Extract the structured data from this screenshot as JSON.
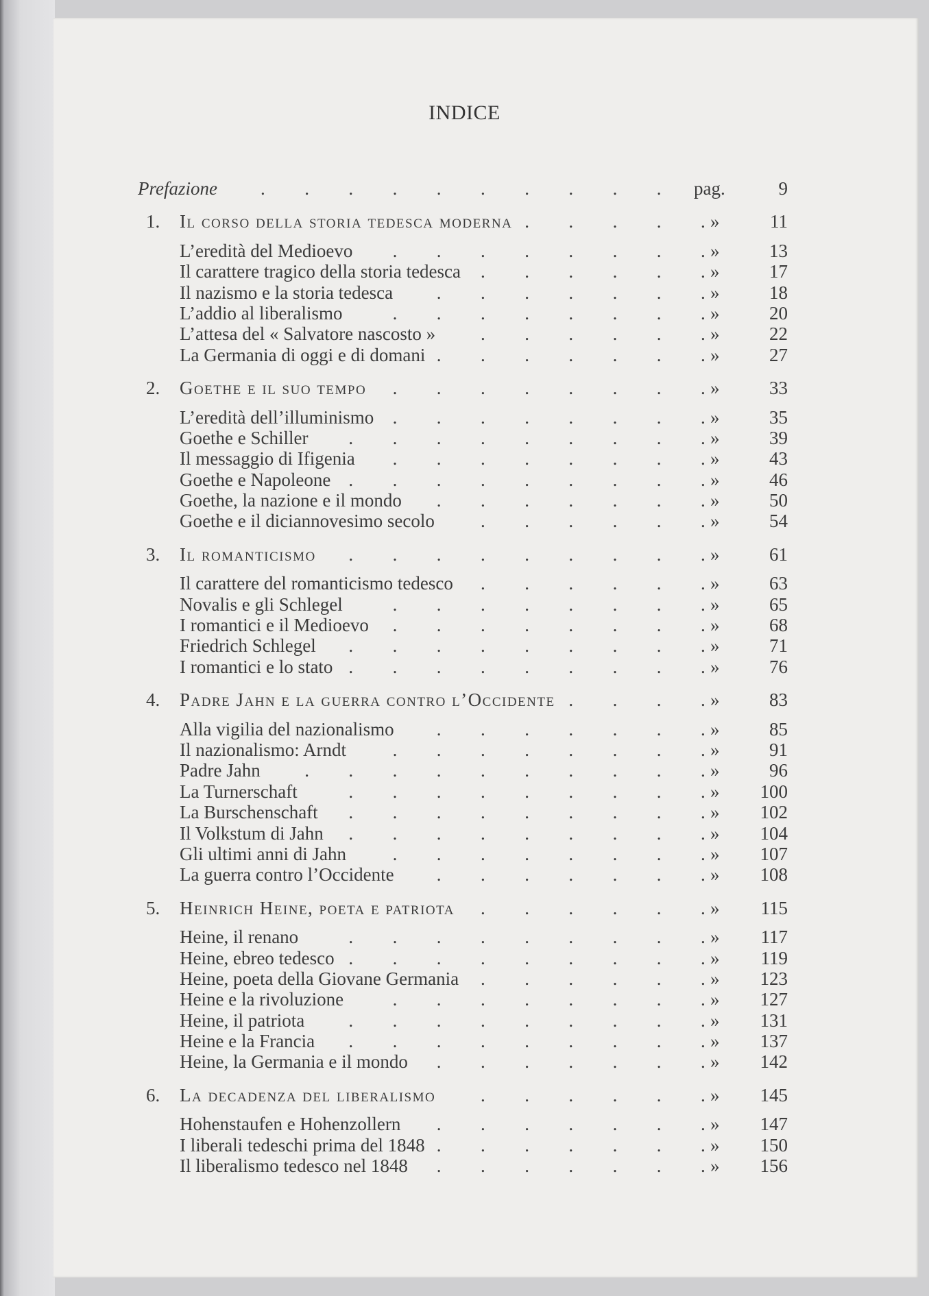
{
  "heading": "INDICE",
  "preface": {
    "label": "Prefazione",
    "mark": "pag.",
    "page": "9"
  },
  "ditto": "»",
  "chapters": [
    {
      "num": "1.",
      "title": "Il corso della storia tedesca moderna",
      "page": "11",
      "entries": [
        {
          "title": "L’eredità del Medioevo",
          "page": "13"
        },
        {
          "title": "Il carattere tragico della storia tedesca",
          "page": "17"
        },
        {
          "title": "Il nazismo e la storia tedesca",
          "page": "18"
        },
        {
          "title": "L’addio al liberalismo",
          "page": "20"
        },
        {
          "title": "L’attesa del « Salvatore nascosto »",
          "page": "22"
        },
        {
          "title": "La Germania di oggi e di domani",
          "page": "27"
        }
      ]
    },
    {
      "num": "2.",
      "title": "Goethe e il suo tempo",
      "page": "33",
      "entries": [
        {
          "title": "L’eredità dell’illuminismo",
          "page": "35"
        },
        {
          "title": "Goethe e Schiller",
          "page": "39"
        },
        {
          "title": "Il messaggio di Ifigenia",
          "page": "43"
        },
        {
          "title": "Goethe e Napoleone",
          "page": "46"
        },
        {
          "title": "Goethe, la nazione e il mondo",
          "page": "50"
        },
        {
          "title": "Goethe e il diciannovesimo secolo",
          "page": "54"
        }
      ]
    },
    {
      "num": "3.",
      "title": "Il romanticismo",
      "page": "61",
      "entries": [
        {
          "title": "Il carattere del romanticismo tedesco",
          "page": "63"
        },
        {
          "title": "Novalis e gli Schlegel",
          "page": "65"
        },
        {
          "title": "I romantici e il Medioevo",
          "page": "68"
        },
        {
          "title": "Friedrich Schlegel",
          "page": "71"
        },
        {
          "title": "I romantici e lo stato",
          "page": "76"
        }
      ]
    },
    {
      "num": "4.",
      "title": "Padre Jahn e la guerra contro l’Occidente",
      "page": "83",
      "entries": [
        {
          "title": "Alla vigilia del nazionalismo",
          "page": "85"
        },
        {
          "title": "Il nazionalismo: Arndt",
          "page": "91"
        },
        {
          "title": "Padre Jahn",
          "page": "96"
        },
        {
          "title": "La Turnerschaft",
          "page": "100"
        },
        {
          "title": "La Burschenschaft",
          "page": "102"
        },
        {
          "title": "Il Volkstum di Jahn",
          "page": "104"
        },
        {
          "title": "Gli ultimi anni di Jahn",
          "page": "107"
        },
        {
          "title": "La guerra contro l’Occidente",
          "page": "108"
        }
      ]
    },
    {
      "num": "5.",
      "title": "Heinrich Heine, poeta e patriota",
      "page": "115",
      "entries": [
        {
          "title": "Heine, il renano",
          "page": "117"
        },
        {
          "title": "Heine, ebreo tedesco",
          "page": "119"
        },
        {
          "title": "Heine, poeta della Giovane Germania",
          "page": "123"
        },
        {
          "title": "Heine e la rivoluzione",
          "page": "127"
        },
        {
          "title": "Heine, il patriota",
          "page": "131"
        },
        {
          "title": "Heine e la Francia",
          "page": "137"
        },
        {
          "title": "Heine, la Germania e il mondo",
          "page": "142"
        }
      ]
    },
    {
      "num": "6.",
      "title": "La decadenza del liberalismo",
      "page": "145",
      "entries": [
        {
          "title": "Hohenstaufen e Hohenzollern",
          "page": "147"
        },
        {
          "title": "I liberali tedeschi prima del 1848",
          "page": "150"
        },
        {
          "title": "Il liberalismo tedesco nel 1848",
          "page": "156"
        }
      ]
    }
  ]
}
